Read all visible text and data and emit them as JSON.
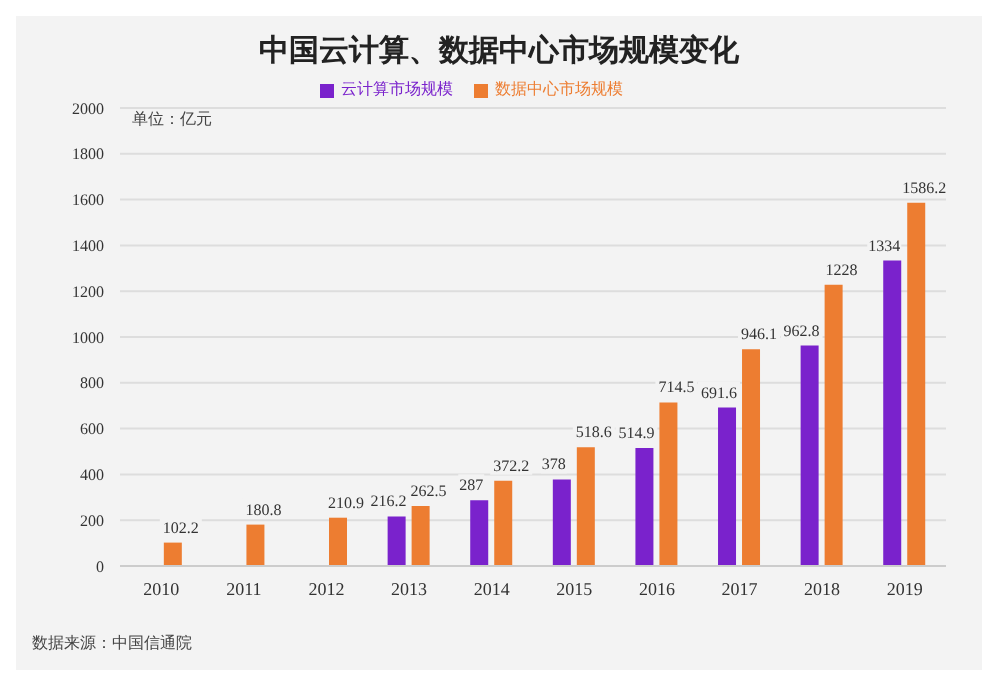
{
  "chart_data": {
    "type": "bar",
    "title": "中国云计算、数据中心市场规模变化",
    "ylabel": "单位：亿元",
    "categories": [
      "2010",
      "2011",
      "2012",
      "2013",
      "2014",
      "2015",
      "2016",
      "2017",
      "2018",
      "2019"
    ],
    "series": [
      {
        "name": "云计算市场规模",
        "color": "#7a22cc",
        "values": [
          null,
          null,
          null,
          216.2,
          287,
          378,
          514.9,
          691.6,
          962.8,
          1334
        ],
        "value_labels": [
          null,
          null,
          null,
          "216.2",
          "287",
          "378",
          "514.9",
          "691.6",
          "962.8",
          "1334"
        ]
      },
      {
        "name": "数据中心市场规模",
        "color": "#ed7d31",
        "values": [
          102.2,
          180.8,
          210.9,
          262.5,
          372.2,
          518.6,
          714.5,
          946.1,
          1228,
          1586.2
        ],
        "value_labels": [
          "102.2",
          "180.8",
          "210.9",
          "262.5",
          "372.2",
          "518.6",
          "714.5",
          "946.1",
          "1228",
          "1586.2"
        ]
      }
    ],
    "ylim": [
      0,
      2000
    ],
    "yticks": [
      0,
      200,
      400,
      600,
      800,
      1000,
      1200,
      1400,
      1600,
      1800,
      2000
    ],
    "grid": "y",
    "legend": "top",
    "annotations": [
      "数据来源：中国信通院"
    ]
  }
}
